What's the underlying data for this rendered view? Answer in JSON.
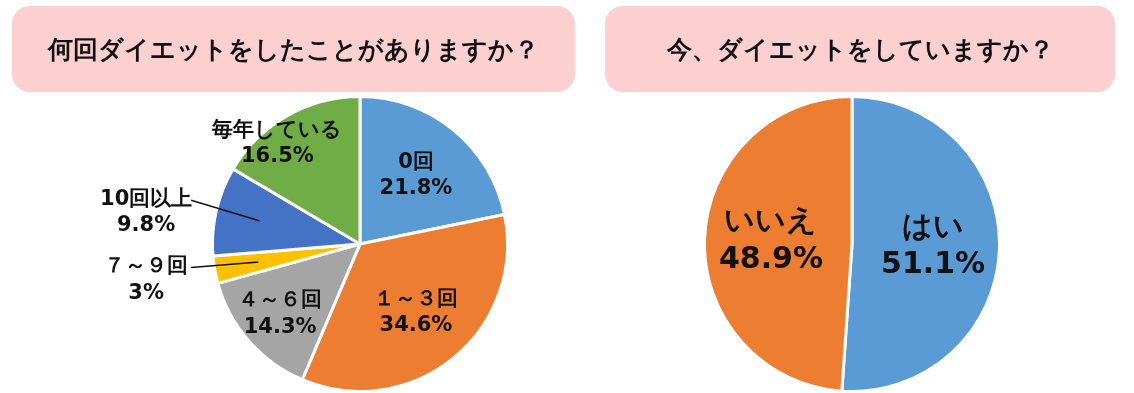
{
  "chart_data": [
    {
      "type": "pie",
      "title": "何回ダイエットをしたことがありますか？",
      "categories": [
        "0回",
        "１～３回",
        "４～６回",
        "７～９回",
        "10回以上",
        "毎年している"
      ],
      "values": [
        21.8,
        34.6,
        14.3,
        3,
        9.8,
        16.5
      ],
      "colors": [
        "#5b9bd5",
        "#ed7d31",
        "#a5a5a5",
        "#ffc000",
        "#4472c4",
        "#70ad47"
      ],
      "value_labels": [
        "21.8%",
        "34.6%",
        "14.3%",
        "3%",
        "9.8%",
        "16.5%"
      ],
      "legend": false
    },
    {
      "type": "pie",
      "title": "今、ダイエットをしていますか？",
      "categories": [
        "はい",
        "いいえ"
      ],
      "values": [
        51.1,
        48.9
      ],
      "colors": [
        "#5b9bd5",
        "#ed7d31"
      ],
      "value_labels": [
        "51.1%",
        "48.9%"
      ],
      "legend": false
    }
  ]
}
